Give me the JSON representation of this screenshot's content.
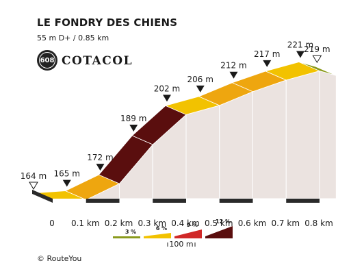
{
  "header": {
    "title": "LE FONDRY DES CHIENS",
    "subtitle": "55 m D+ / 0.85 km",
    "climb_number": "608",
    "brand": "COTACOL"
  },
  "footer": {
    "copyright_symbol": "©",
    "copyright_text": "RouteYou"
  },
  "chart_data": {
    "type": "area",
    "x_unit": "km",
    "points": [
      {
        "x": 0.0,
        "elevation": 164,
        "label": "164 m",
        "marker": "start"
      },
      {
        "x": 0.1,
        "elevation": 165,
        "label": "165 m"
      },
      {
        "x": 0.2,
        "elevation": 172,
        "label": "172 m"
      },
      {
        "x": 0.3,
        "elevation": 189,
        "label": "189 m"
      },
      {
        "x": 0.4,
        "elevation": 202,
        "label": "202 m"
      },
      {
        "x": 0.5,
        "elevation": 206,
        "label": "206 m"
      },
      {
        "x": 0.6,
        "elevation": 212,
        "label": "212 m"
      },
      {
        "x": 0.7,
        "elevation": 217,
        "label": "217 m"
      },
      {
        "x": 0.8,
        "elevation": 221,
        "label": "221 m"
      },
      {
        "x": 0.85,
        "elevation": 219,
        "label": "219 m",
        "marker": "end"
      }
    ],
    "x_ticks": [
      "0",
      "0.1 km",
      "0.2 km",
      "0.3 km",
      "0.4 km",
      "0.5 km",
      "0.6 km",
      "0.7 km",
      "0.8 km"
    ],
    "gradient_colors": [
      {
        "min": 0,
        "color": "#8a9a1c"
      },
      {
        "min": 1,
        "color": "#f2c200"
      },
      {
        "min": 5,
        "color": "#eea60f"
      },
      {
        "min": 10,
        "color": "#5a0e0e"
      }
    ],
    "side_color": "#ebe3e0",
    "legend": {
      "scale_label": "100 m",
      "items": [
        {
          "label": "3 %",
          "color": "#8a9a1c"
        },
        {
          "label": "6 %",
          "color": "#f2c200"
        },
        {
          "label": "9 %",
          "color": "#d02828"
        },
        {
          "label": "12 %",
          "color": "#5a0e0e"
        }
      ]
    }
  }
}
